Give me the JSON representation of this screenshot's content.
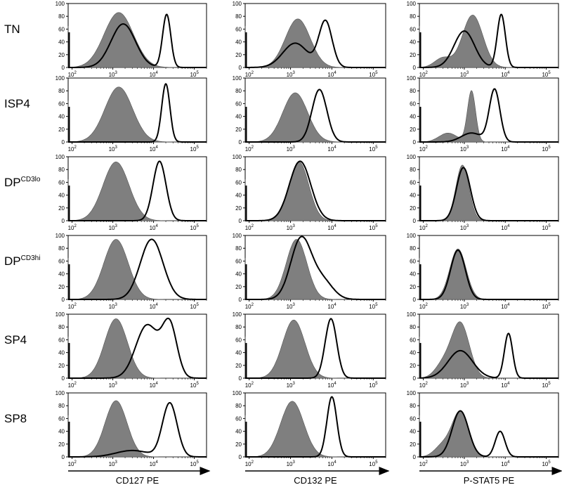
{
  "figure": {
    "rows": [
      {
        "label": "TN",
        "sup": ""
      },
      {
        "label": "ISP4",
        "sup": ""
      },
      {
        "label": "DP",
        "sup": "CD3lo"
      },
      {
        "label": "DP",
        "sup": "CD3hi"
      },
      {
        "label": "SP4",
        "sup": ""
      },
      {
        "label": "SP8",
        "sup": ""
      }
    ],
    "columns": [
      "CD127 PE",
      "CD132 PE",
      "P-STAT5 PE"
    ]
  },
  "colors": {
    "filled": "#7f7f7f",
    "outline": "#000000",
    "axis": "#000000"
  },
  "chart_data": {
    "type": "area",
    "xscale": "log",
    "xlim": [
      80,
      200000
    ],
    "ylim": [
      0,
      100
    ],
    "y_ticks": [
      0,
      20,
      40,
      60,
      80,
      100
    ],
    "x_ticks": [
      {
        "base": "10",
        "exp": "2",
        "value": 100
      },
      {
        "base": "10",
        "exp": "3",
        "value": 1000
      },
      {
        "base": "10",
        "exp": "4",
        "value": 10000
      },
      {
        "base": "10",
        "exp": "5",
        "value": 100000
      }
    ],
    "grid": false,
    "panels": [
      {
        "row": "TN",
        "column": "CD127 PE",
        "filled": [
          {
            "c": 1400,
            "h": 86,
            "w": 0.36
          }
        ],
        "open": [
          {
            "c": 1800,
            "h": 68,
            "w": 0.3
          },
          {
            "c": 21000,
            "h": 83,
            "w": 0.1
          }
        ]
      },
      {
        "row": "TN",
        "column": "CD132 PE",
        "filled": [
          {
            "c": 1500,
            "h": 76,
            "w": 0.3
          }
        ],
        "open": [
          {
            "c": 1300,
            "h": 38,
            "w": 0.3
          },
          {
            "c": 7000,
            "h": 72,
            "w": 0.16
          }
        ]
      },
      {
        "row": "TN",
        "column": "P-STAT5 PE",
        "filled": [
          {
            "c": 1600,
            "h": 82,
            "w": 0.25
          },
          {
            "c": 300,
            "h": 15,
            "w": 0.2
          }
        ],
        "open": [
          {
            "c": 1000,
            "h": 57,
            "w": 0.25
          },
          {
            "c": 8000,
            "h": 83,
            "w": 0.1
          }
        ]
      },
      {
        "row": "ISP4",
        "column": "CD127 PE",
        "filled": [
          {
            "c": 1400,
            "h": 86,
            "w": 0.34
          }
        ],
        "open": [
          {
            "c": 20000,
            "h": 91,
            "w": 0.1
          }
        ]
      },
      {
        "row": "ISP4",
        "column": "CD132 PE",
        "filled": [
          {
            "c": 1300,
            "h": 77,
            "w": 0.3
          }
        ],
        "open": [
          {
            "c": 5000,
            "h": 82,
            "w": 0.18
          }
        ]
      },
      {
        "row": "ISP4",
        "column": "P-STAT5 PE",
        "filled": [
          {
            "c": 1500,
            "h": 80,
            "w": 0.1
          },
          {
            "c": 400,
            "h": 14,
            "w": 0.22
          }
        ],
        "open": [
          {
            "c": 5500,
            "h": 82,
            "w": 0.13
          },
          {
            "c": 1500,
            "h": 14,
            "w": 0.25
          }
        ]
      },
      {
        "row": "DP<sup>CD3lo</sup>",
        "column": "CD127 PE",
        "filled": [
          {
            "c": 1200,
            "h": 92,
            "w": 0.32
          }
        ],
        "open": [
          {
            "c": 14000,
            "h": 93,
            "w": 0.16
          }
        ]
      },
      {
        "row": "DP<sup>CD3lo</sup>",
        "column": "CD132 PE",
        "filled": [
          {
            "c": 1600,
            "h": 92,
            "w": 0.24
          }
        ],
        "open": [
          {
            "c": 1700,
            "h": 93,
            "w": 0.26
          }
        ]
      },
      {
        "row": "DP<sup>CD3lo</sup>",
        "column": "P-STAT5 PE",
        "filled": [
          {
            "c": 900,
            "h": 87,
            "w": 0.16
          }
        ],
        "open": [
          {
            "c": 950,
            "h": 83,
            "w": 0.17
          }
        ]
      },
      {
        "row": "DP<sup>CD3hi</sup>",
        "column": "CD127 PE",
        "filled": [
          {
            "c": 1200,
            "h": 94,
            "w": 0.3
          }
        ],
        "open": [
          {
            "c": 9000,
            "h": 94,
            "w": 0.28
          }
        ]
      },
      {
        "row": "DP<sup>CD3hi</sup>",
        "column": "CD132 PE",
        "filled": [
          {
            "c": 1400,
            "h": 94,
            "w": 0.25
          }
        ],
        "open": [
          {
            "c": 1800,
            "h": 95,
            "w": 0.25
          },
          {
            "c": 6000,
            "h": 28,
            "w": 0.25
          }
        ]
      },
      {
        "row": "DP<sup>CD3hi</sup>",
        "column": "P-STAT5 PE",
        "filled": [
          {
            "c": 700,
            "h": 79,
            "w": 0.2
          }
        ],
        "open": [
          {
            "c": 700,
            "h": 77,
            "w": 0.18
          }
        ]
      },
      {
        "row": "SP4",
        "column": "CD127 PE",
        "filled": [
          {
            "c": 1200,
            "h": 93,
            "w": 0.28
          }
        ],
        "open": [
          {
            "c": 7000,
            "h": 83,
            "w": 0.28
          },
          {
            "c": 25000,
            "h": 80,
            "w": 0.18
          }
        ]
      },
      {
        "row": "SP4",
        "column": "CD132 PE",
        "filled": [
          {
            "c": 1200,
            "h": 91,
            "w": 0.27
          }
        ],
        "open": [
          {
            "c": 9500,
            "h": 93,
            "w": 0.14
          }
        ]
      },
      {
        "row": "SP4",
        "column": "P-STAT5 PE",
        "filled": [
          {
            "c": 800,
            "h": 86,
            "w": 0.22
          },
          {
            "c": 300,
            "h": 20,
            "w": 0.2
          }
        ],
        "open": [
          {
            "c": 800,
            "h": 43,
            "w": 0.3
          },
          {
            "c": 12000,
            "h": 70,
            "w": 0.1
          }
        ]
      },
      {
        "row": "SP8",
        "column": "CD127 PE",
        "filled": [
          {
            "c": 1200,
            "h": 88,
            "w": 0.27
          }
        ],
        "open": [
          {
            "c": 25000,
            "h": 84,
            "w": 0.18
          },
          {
            "c": 3000,
            "h": 10,
            "w": 0.4
          }
        ]
      },
      {
        "row": "SP8",
        "column": "CD132 PE",
        "filled": [
          {
            "c": 1100,
            "h": 87,
            "w": 0.28
          }
        ],
        "open": [
          {
            "c": 10000,
            "h": 94,
            "w": 0.12
          }
        ]
      },
      {
        "row": "SP8",
        "column": "P-STAT5 PE",
        "filled": [
          {
            "c": 800,
            "h": 70,
            "w": 0.2
          },
          {
            "c": 300,
            "h": 18,
            "w": 0.2
          }
        ],
        "open": [
          {
            "c": 800,
            "h": 72,
            "w": 0.2
          },
          {
            "c": 7500,
            "h": 40,
            "w": 0.12
          }
        ]
      }
    ]
  }
}
